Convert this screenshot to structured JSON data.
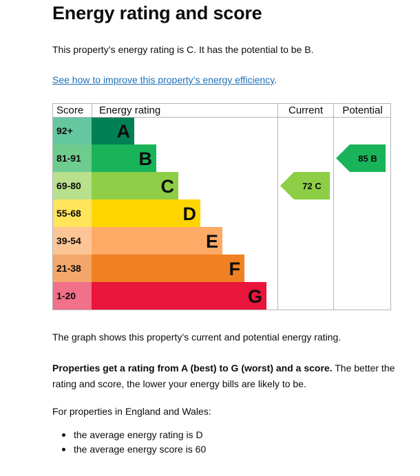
{
  "page": {
    "title": "Energy rating and score",
    "rating_text": "This property’s energy rating is C. It has the potential to be B.",
    "improve_link": "See how to improve this property’s energy efficiency",
    "improve_link_suffix": ".",
    "graph_text": "The graph shows this property’s current and potential energy rating.",
    "ratings_bold": "Properties get a rating from A (best) to G (worst) and a score.",
    "ratings_rest": " The better the rating and score, the lower your energy bills are likely to be.",
    "england_text": "For properties in England and Wales:",
    "bullets": [
      "the average energy rating is D",
      "the average energy score is 60"
    ]
  },
  "chart_data": {
    "type": "bar",
    "headers": {
      "score": "Score",
      "rating": "Energy rating",
      "current": "Current",
      "potential": "Potential"
    },
    "bands": [
      {
        "label": "A",
        "range": "92+",
        "color": "#008054",
        "light": "#64c7a0"
      },
      {
        "label": "B",
        "range": "81-91",
        "color": "#19b459",
        "light": "#6fcc8f"
      },
      {
        "label": "C",
        "range": "69-80",
        "color": "#8dce46",
        "light": "#b9e08d"
      },
      {
        "label": "D",
        "range": "55-68",
        "color": "#ffd500",
        "light": "#ffe45c"
      },
      {
        "label": "E",
        "range": "39-54",
        "color": "#fcaa65",
        "light": "#fdc596"
      },
      {
        "label": "F",
        "range": "21-38",
        "color": "#ef8023",
        "light": "#f4a76a"
      },
      {
        "label": "G",
        "range": "1-20",
        "color": "#e9153b",
        "light": "#f1708a"
      }
    ],
    "current": {
      "score": 72,
      "band": "C",
      "label": "72 C",
      "color": "#8dce46"
    },
    "potential": {
      "score": 85,
      "band": "B",
      "label": "85 B",
      "color": "#19b459"
    }
  }
}
